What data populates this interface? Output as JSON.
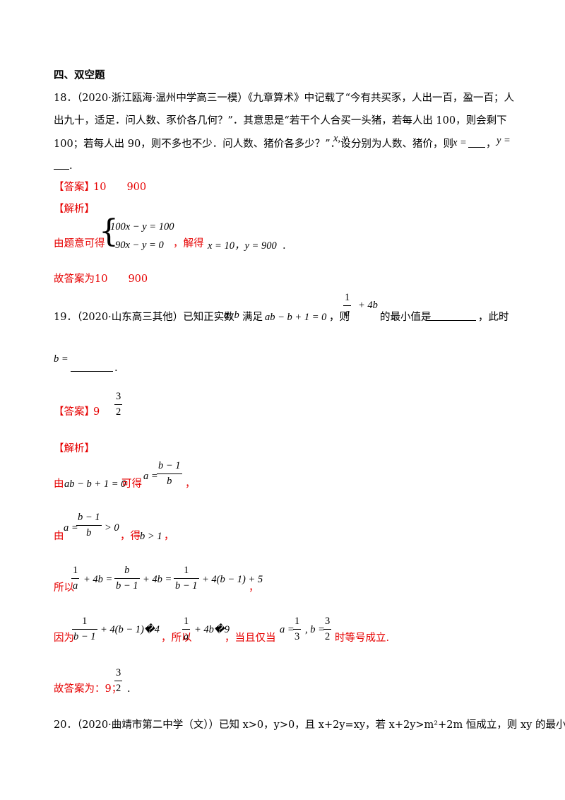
{
  "section_title": "四、双空题",
  "q18": {
    "line1": "18．（2020·浙江瓯海·温州中学高三一模）《九章算术》中记载了“今有共买豕，人出一百，盈一百；人",
    "line2": "出九十，适足．问人数、豕价各几何？”．其意思是“若干个人合买一头猪，若每人出 100，则会剩下",
    "line3a": "100；若每人出 90，则不多也不少．问人数、猪价各多少？”．设",
    "line3vars": "x, y",
    "line3b": "分别为人数、猪价，则",
    "x_eq": "x =",
    "comma": "，",
    "y_eq": "y =",
    "line4end": ".",
    "answer_label": "【答案】",
    "answer_values": "10　　900",
    "analysis_label": "【解析】",
    "sol_prefix": "由题意可得",
    "eq1": "100x − y = 100",
    "eq2": "90x − y = 0",
    "sol_mid": "，解得",
    "sol_result": "x = 10，y = 900",
    "sol_end": ".",
    "final": "故答案为10　　900"
  },
  "q19": {
    "prefix": "19．（2020·山东高三其他）已知正实数",
    "vars": "a, b",
    "cond_word": "满足",
    "cond": "ab − b + 1 = 0",
    "then": "，则",
    "expr_num": "1",
    "expr_den": "a",
    "expr_tail": "+ 4b",
    "question": "的最小值是",
    "tail": "，此时",
    "b_eq": "b =",
    "period": ".",
    "answer_label": "【答案】",
    "answer_value": "9",
    "answer_frac_num": "3",
    "answer_frac_den": "2",
    "analysis_label": "【解析】",
    "s1_a": "由",
    "s1_eq": "ab − b + 1 = 0",
    "s1_b": "可得",
    "s1_lhs": "a =",
    "s1_num": "b − 1",
    "s1_den": "b",
    "s1_end": "，",
    "s2_a": "由",
    "s2_lhs": "a =",
    "s2_num": "b − 1",
    "s2_den": "b",
    "s2_rhs": "> 0",
    "s2_b": "，得",
    "s2_res": "b > 1",
    "s2_end": "，",
    "s3_a": "所以",
    "s3_n1": "1",
    "s3_d1": "a",
    "s3_t1": "+ 4b =",
    "s3_n2": "b",
    "s3_d2": "b − 1",
    "s3_t2": "+ 4b =",
    "s3_n3": "1",
    "s3_d3": "b − 1",
    "s3_t3": "+ 4(b − 1) + 5",
    "s3_end": "，",
    "s4_a": "因为",
    "s4_n1": "1",
    "s4_d1": "b − 1",
    "s4_t1": "+ 4(b − 1)�4",
    "s4_b": "，所以",
    "s4_n2": "1",
    "s4_d2": "a",
    "s4_t2": "+ 4b�9",
    "s4_c": "，当且仅当",
    "s4_alhs": "a =",
    "s4_an": "1",
    "s4_ad": "3",
    "s4_blhs": ", b =",
    "s4_bn": "3",
    "s4_bd": "2",
    "s4_end": "时等号成立.",
    "final_a": "故答案为：9；",
    "final_n": "3",
    "final_d": "2",
    "final_end": "."
  },
  "q20": {
    "text": "20．（2020·曲靖市第二中学（文））已知 x>0，y>0，且 x+2y=xy，若 x+2y>m²+2m 恒成立，则 xy 的最小值"
  }
}
